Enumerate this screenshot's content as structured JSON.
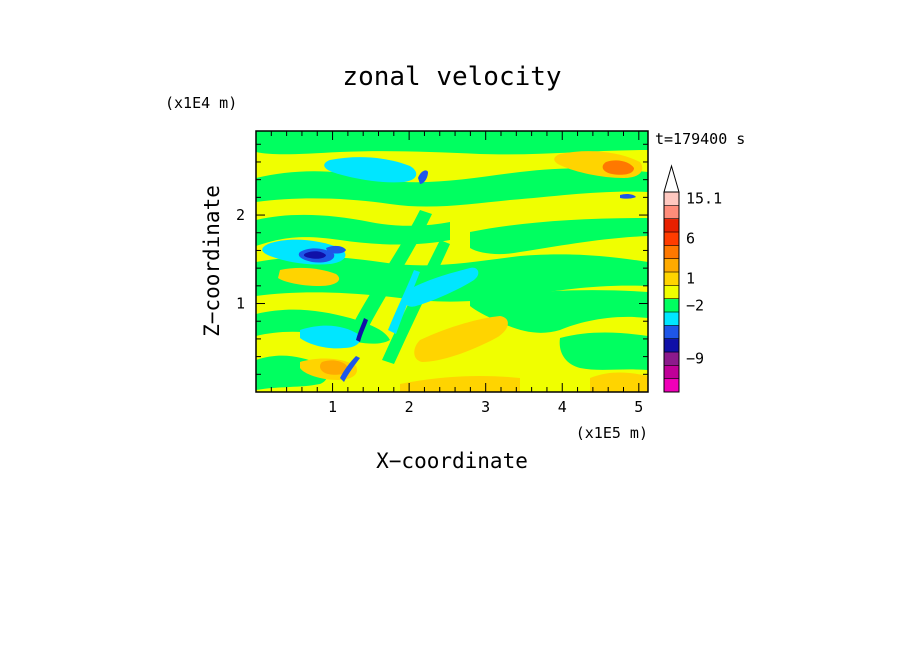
{
  "chart_data": {
    "type": "heatmap",
    "title": "zonal velocity",
    "time_label": "t=179400 s",
    "xlabel": "X−coordinate",
    "ylabel": "Z−coordinate",
    "x_scale_label": "(x1E5 m)",
    "y_scale_label": "(x1E4 m)",
    "xlim": [
      0,
      5.12
    ],
    "ylim": [
      0,
      2.95
    ],
    "x_ticks": [
      {
        "value": 1,
        "label": "1"
      },
      {
        "value": 2,
        "label": "2"
      },
      {
        "value": 3,
        "label": "3"
      },
      {
        "value": 4,
        "label": "4"
      },
      {
        "value": 5,
        "label": "5"
      }
    ],
    "y_ticks": [
      {
        "value": 1,
        "label": "1"
      },
      {
        "value": 2,
        "label": "2"
      }
    ],
    "colorbar": {
      "bands": [
        {
          "color": "#f000b8"
        },
        {
          "color": "#c00098"
        },
        {
          "color": "#8c1a8c"
        },
        {
          "color": "#1010a8"
        },
        {
          "color": "#1e56e8"
        },
        {
          "color": "#00e6ff"
        },
        {
          "color": "#00ff60"
        },
        {
          "color": "#f0ff00"
        },
        {
          "color": "#ffd400"
        },
        {
          "color": "#ffaa00"
        },
        {
          "color": "#ff7800"
        },
        {
          "color": "#ff3c00"
        },
        {
          "color": "#e82000"
        },
        {
          "color": "#ff8c7a"
        },
        {
          "color": "#ffc8c0"
        }
      ],
      "labels": [
        {
          "text": "15.1",
          "band": 14
        },
        {
          "text": "6",
          "band": 11
        },
        {
          "text": "1",
          "band": 8
        },
        {
          "text": "−2",
          "band": 6
        },
        {
          "text": "−9",
          "band": 2
        }
      ]
    },
    "colors": {
      "yellow": "#f0ff00",
      "green": "#00ff60",
      "cyan": "#00e6ff",
      "orange": "#ffd400",
      "deep_orange": "#ffaa00",
      "red_orange": "#ff7800",
      "blue": "#1010a8",
      "mid_blue": "#1e56e8"
    }
  }
}
